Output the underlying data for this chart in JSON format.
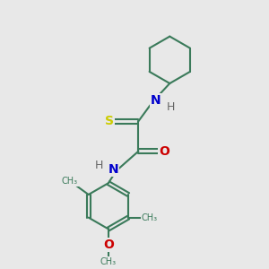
{
  "background_color": "#e8e8e8",
  "bond_color": "#3a7a5a",
  "bond_width": 1.5,
  "atom_colors": {
    "S": "#cccc00",
    "N": "#0000cc",
    "O": "#cc0000",
    "H": "#666666",
    "C": "#3a7a5a"
  },
  "figsize": [
    3.0,
    3.0
  ],
  "dpi": 100,
  "xlim": [
    0,
    10
  ],
  "ylim": [
    0,
    10
  ]
}
